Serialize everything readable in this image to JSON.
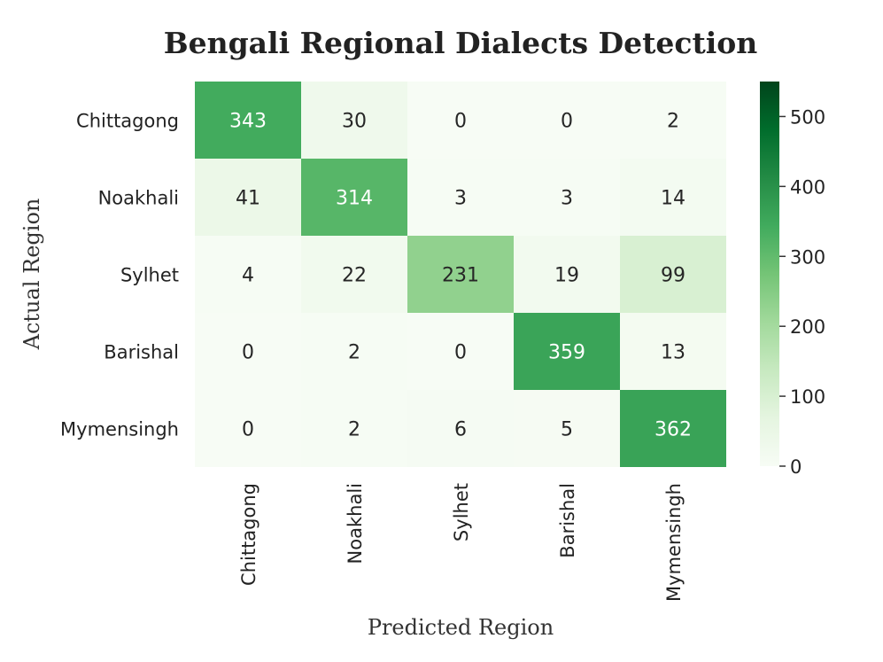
{
  "chart_data": {
    "type": "heatmap",
    "title": "Bengali Regional Dialects Detection",
    "xlabel": "Predicted Region",
    "ylabel": "Actual Region",
    "row_labels": [
      "Chittagong",
      "Noakhali",
      "Sylhet",
      "Barishal",
      "Mymensingh"
    ],
    "col_labels": [
      "Chittagong",
      "Noakhali",
      "Sylhet",
      "Barishal",
      "Mymensingh"
    ],
    "values": [
      [
        343,
        30,
        0,
        0,
        2
      ],
      [
        41,
        314,
        3,
        3,
        14
      ],
      [
        4,
        22,
        231,
        19,
        99
      ],
      [
        0,
        2,
        0,
        359,
        13
      ],
      [
        0,
        2,
        6,
        5,
        362
      ]
    ],
    "colormap": "Greens",
    "vmin": 0,
    "vmax": 550,
    "colorbar_ticks": [
      0,
      100,
      200,
      300,
      400,
      500
    ],
    "colorbar_tick_labels": [
      "0",
      "100",
      "200",
      "300",
      "400",
      "500"
    ]
  },
  "colors": {
    "cmap_stops": [
      "#f7fcf5",
      "#e5f5e0",
      "#c7e9c0",
      "#a1d99b",
      "#74c476",
      "#41ab5d",
      "#238b45",
      "#006d2c",
      "#00441b"
    ],
    "text_dark": "#262626",
    "text_light": "#ffffff"
  }
}
